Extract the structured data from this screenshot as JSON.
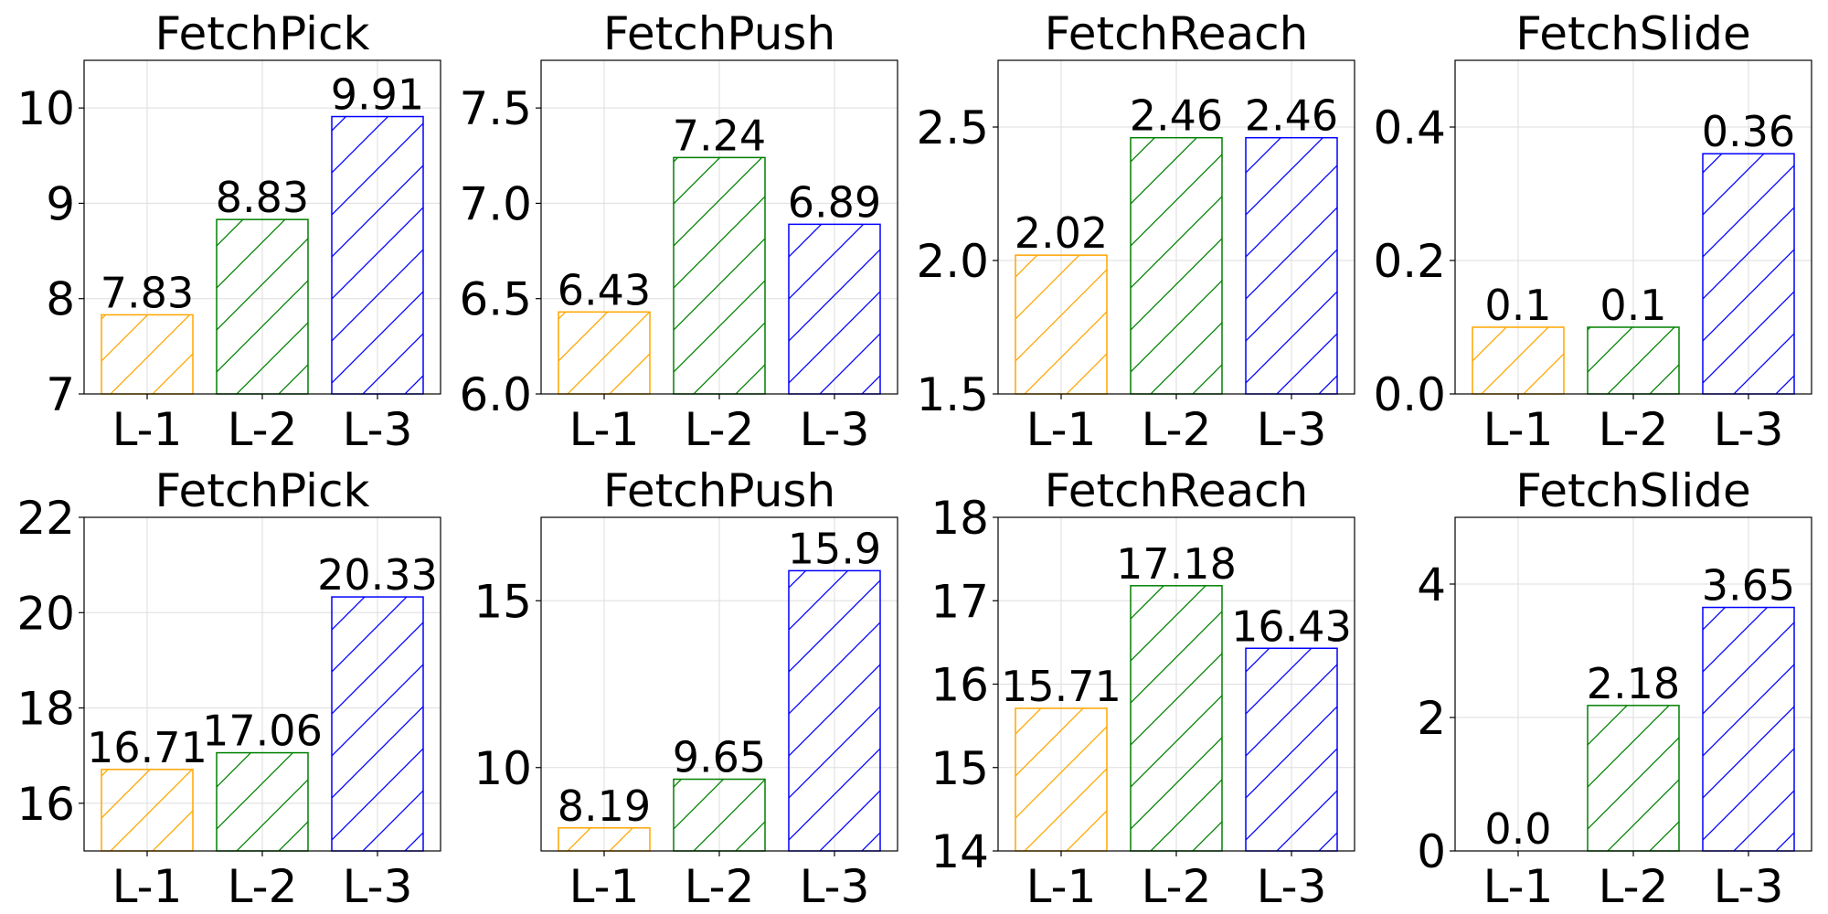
{
  "chart_data": [
    {
      "type": "bar",
      "title": "FetchPick",
      "categories": [
        "L-1",
        "L-2",
        "L-3"
      ],
      "values": [
        7.83,
        8.83,
        9.91
      ],
      "labels": [
        "7.83",
        "8.83",
        "9.91"
      ],
      "ylim": [
        7,
        10.5
      ],
      "yticks": [
        7,
        8,
        9,
        10
      ],
      "ytick_labels": [
        "7",
        "8",
        "9",
        "10"
      ],
      "grid": true,
      "colors": [
        "#ffa500",
        "#008000",
        "#0000ff"
      ],
      "hatch": "diagonal"
    },
    {
      "type": "bar",
      "title": "FetchPush",
      "categories": [
        "L-1",
        "L-2",
        "L-3"
      ],
      "values": [
        6.43,
        7.24,
        6.89
      ],
      "labels": [
        "6.43",
        "7.24",
        "6.89"
      ],
      "ylim": [
        6.0,
        7.75
      ],
      "yticks": [
        6.0,
        6.5,
        7.0,
        7.5
      ],
      "ytick_labels": [
        "6.0",
        "6.5",
        "7.0",
        "7.5"
      ],
      "grid": true,
      "colors": [
        "#ffa500",
        "#008000",
        "#0000ff"
      ],
      "hatch": "diagonal"
    },
    {
      "type": "bar",
      "title": "FetchReach",
      "categories": [
        "L-1",
        "L-2",
        "L-3"
      ],
      "values": [
        2.02,
        2.46,
        2.46
      ],
      "labels": [
        "2.02",
        "2.46",
        "2.46"
      ],
      "ylim": [
        1.5,
        2.75
      ],
      "yticks": [
        1.5,
        2.0,
        2.5
      ],
      "ytick_labels": [
        "1.5",
        "2.0",
        "2.5"
      ],
      "grid": true,
      "colors": [
        "#ffa500",
        "#008000",
        "#0000ff"
      ],
      "hatch": "diagonal"
    },
    {
      "type": "bar",
      "title": "FetchSlide",
      "categories": [
        "L-1",
        "L-2",
        "L-3"
      ],
      "values": [
        0.1,
        0.1,
        0.36
      ],
      "labels": [
        "0.1",
        "0.1",
        "0.36"
      ],
      "ylim": [
        0.0,
        0.5
      ],
      "yticks": [
        0.0,
        0.2,
        0.4
      ],
      "ytick_labels": [
        "0.0",
        "0.2",
        "0.4"
      ],
      "grid": true,
      "colors": [
        "#ffa500",
        "#008000",
        "#0000ff"
      ],
      "hatch": "diagonal"
    },
    {
      "type": "bar",
      "title": "FetchPick",
      "categories": [
        "L-1",
        "L-2",
        "L-3"
      ],
      "values": [
        16.71,
        17.06,
        20.33
      ],
      "labels": [
        "16.71",
        "17.06",
        "20.33"
      ],
      "ylim": [
        15,
        22
      ],
      "yticks": [
        16,
        18,
        20,
        22
      ],
      "ytick_labels": [
        "16",
        "18",
        "20",
        "22"
      ],
      "grid": true,
      "colors": [
        "#ffa500",
        "#008000",
        "#0000ff"
      ],
      "hatch": "diagonal"
    },
    {
      "type": "bar",
      "title": "FetchPush",
      "categories": [
        "L-1",
        "L-2",
        "L-3"
      ],
      "values": [
        8.19,
        9.65,
        15.9
      ],
      "labels": [
        "8.19",
        "9.65",
        "15.9"
      ],
      "ylim": [
        7.5,
        17.5
      ],
      "yticks": [
        10,
        15
      ],
      "ytick_labels": [
        "10",
        "15"
      ],
      "grid": true,
      "colors": [
        "#ffa500",
        "#008000",
        "#0000ff"
      ],
      "hatch": "diagonal"
    },
    {
      "type": "bar",
      "title": "FetchReach",
      "categories": [
        "L-1",
        "L-2",
        "L-3"
      ],
      "values": [
        15.71,
        17.18,
        16.43
      ],
      "labels": [
        "15.71",
        "17.18",
        "16.43"
      ],
      "ylim": [
        14,
        18
      ],
      "yticks": [
        14,
        15,
        16,
        17,
        18
      ],
      "ytick_labels": [
        "14",
        "15",
        "16",
        "17",
        "18"
      ],
      "grid": true,
      "colors": [
        "#ffa500",
        "#008000",
        "#0000ff"
      ],
      "hatch": "diagonal"
    },
    {
      "type": "bar",
      "title": "FetchSlide",
      "categories": [
        "L-1",
        "L-2",
        "L-3"
      ],
      "values": [
        0.0,
        2.18,
        3.65
      ],
      "labels": [
        "0.0",
        "2.18",
        "3.65"
      ],
      "ylim": [
        0,
        5
      ],
      "yticks": [
        0,
        2,
        4
      ],
      "ytick_labels": [
        "0",
        "2",
        "4"
      ],
      "grid": true,
      "colors": [
        "#ffa500",
        "#008000",
        "#0000ff"
      ],
      "hatch": "diagonal"
    }
  ]
}
